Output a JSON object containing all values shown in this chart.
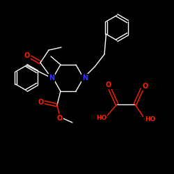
{
  "background_color": "#000000",
  "bond_color": "#ffffff",
  "atom_colors": {
    "N": "#3333ff",
    "O": "#ff2200"
  },
  "figsize": [
    2.5,
    2.5
  ],
  "dpi": 100,
  "lw": 1.0
}
